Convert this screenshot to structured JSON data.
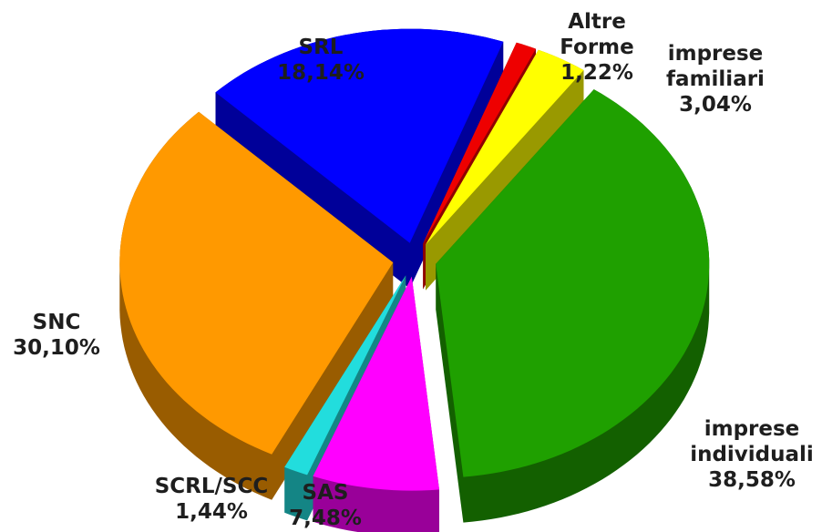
{
  "chart_data": {
    "type": "pie",
    "categories": [
      "Altre Forme",
      "imprese familiari",
      "imprese individuali",
      "SAS",
      "SCRL/SCC",
      "SNC",
      "SRL"
    ],
    "values": [
      1.22,
      3.04,
      38.58,
      7.48,
      1.44,
      30.1,
      18.14
    ],
    "value_labels": [
      "1,22%",
      "3,04%",
      "38,58%",
      "7,48%",
      "1,44%",
      "30,10%",
      "18,14%"
    ],
    "colors": [
      "#ee0000",
      "#ffff00",
      "#1fa000",
      "#ff00ff",
      "#22dddd",
      "#ff9900",
      "#0000ff"
    ]
  }
}
